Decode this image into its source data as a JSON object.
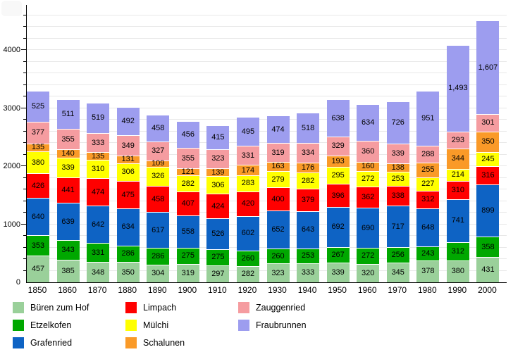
{
  "chart_data": {
    "type": "bar",
    "stacked": true,
    "title": "",
    "xlabel": "",
    "ylabel": "",
    "categories": [
      "1850",
      "1860",
      "1870",
      "1880",
      "1890",
      "1900",
      "1910",
      "1920",
      "1930",
      "1940",
      "1950",
      "1960",
      "1970",
      "1980",
      "1990",
      "2000"
    ],
    "series": [
      {
        "name": "Büren zum Hof",
        "color": "#9AD09A",
        "values": [
          457,
          385,
          348,
          350,
          304,
          319,
          297,
          282,
          323,
          333,
          339,
          320,
          345,
          378,
          380,
          431
        ]
      },
      {
        "name": "Etzelkofen",
        "color": "#00A800",
        "values": [
          353,
          343,
          331,
          286,
          286,
          275,
          275,
          260,
          260,
          253,
          267,
          272,
          256,
          243,
          312,
          358
        ]
      },
      {
        "name": "Grafenried",
        "color": "#0E63C4",
        "values": [
          640,
          639,
          642,
          634,
          617,
          558,
          526,
          602,
          652,
          643,
          692,
          690,
          717,
          648,
          741,
          899
        ]
      },
      {
        "name": "Limpach",
        "color": "#FF0000",
        "values": [
          426,
          441,
          474,
          475,
          458,
          407,
          424,
          420,
          400,
          379,
          396,
          362,
          338,
          312,
          310,
          316
        ]
      },
      {
        "name": "Mülchi",
        "color": "#FFFF00",
        "values": [
          380,
          339,
          310,
          306,
          326,
          282,
          306,
          283,
          279,
          282,
          295,
          272,
          253,
          227,
          214,
          245
        ]
      },
      {
        "name": "Schalunen",
        "color": "#FA9A28",
        "values": [
          135,
          140,
          135,
          131,
          109,
          121,
          139,
          174,
          163,
          176,
          193,
          160,
          138,
          255,
          344,
          350
        ]
      },
      {
        "name": "Zauggenried",
        "color": "#F59CA0",
        "values": [
          377,
          355,
          333,
          349,
          327,
          355,
          323,
          331,
          319,
          334,
          329,
          360,
          339,
          288,
          293,
          301
        ]
      },
      {
        "name": "Fraubrunnen",
        "color": "#9D9DEF",
        "values": [
          525,
          511,
          519,
          492,
          458,
          456,
          415,
          495,
          474,
          518,
          638,
          634,
          726,
          951,
          1493,
          1607
        ]
      }
    ],
    "ylim": [
      0,
      4700
    ],
    "ytick_values": [
      0,
      1000,
      2000,
      3000,
      4000
    ],
    "ytick_labels": [
      "0",
      "1000",
      "2000",
      "3000",
      "4000"
    ],
    "minor_tick_step": 200,
    "grid_step": 200,
    "grid_max": 4600,
    "grid_on": true,
    "legend_position": "bottom",
    "value_label_style": "inside segments, black, thousands separated by comma",
    "colors": {
      "grid": "#e8e8e8",
      "axis": "#000000",
      "label_text": "#000000"
    }
  }
}
